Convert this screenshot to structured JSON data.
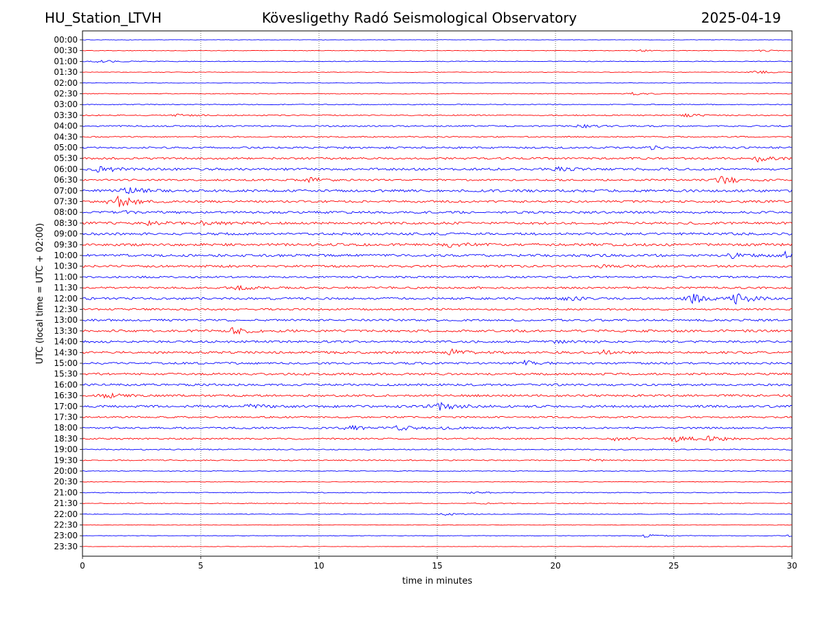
{
  "header": {
    "station": "HU_Station_LTVH",
    "title": "Kövesligethy Radó Seismological Observatory",
    "date": "2025-04-19"
  },
  "chart_data": {
    "type": "line",
    "title": "Kövesligethy Radó Seismological Observatory",
    "xlabel": "time in minutes",
    "ylabel": "UTC (local time = UTC + 02:00)",
    "xlim": [
      0,
      30
    ],
    "xticks": [
      0,
      5,
      10,
      15,
      20,
      25,
      30
    ],
    "grid": "vertical dotted lines at each x tick",
    "trace_colors": [
      "#0000ff",
      "#ff0000"
    ],
    "rows": [
      "00:00",
      "00:30",
      "01:00",
      "01:30",
      "02:00",
      "02:30",
      "03:00",
      "03:30",
      "04:00",
      "04:30",
      "05:00",
      "05:30",
      "06:00",
      "06:30",
      "07:00",
      "07:30",
      "08:00",
      "08:30",
      "09:00",
      "09:30",
      "10:00",
      "10:30",
      "11:00",
      "11:30",
      "12:00",
      "12:30",
      "13:00",
      "13:30",
      "14:00",
      "14:30",
      "15:00",
      "15:30",
      "16:00",
      "16:30",
      "17:00",
      "17:30",
      "18:00",
      "18:30",
      "19:00",
      "19:30",
      "20:00",
      "20:30",
      "21:00",
      "21:30",
      "22:00",
      "22:30",
      "23:00",
      "23:30"
    ],
    "noise_level": [
      0.3,
      0.4,
      0.5,
      0.4,
      0.3,
      0.5,
      0.6,
      0.8,
      1.0,
      0.9,
      1.3,
      1.4,
      1.6,
      1.2,
      1.7,
      1.5,
      1.6,
      1.7,
      1.7,
      1.8,
      1.8,
      1.6,
      1.3,
      1.4,
      1.6,
      1.3,
      1.4,
      1.6,
      1.5,
      1.6,
      1.4,
      1.5,
      1.5,
      1.5,
      1.7,
      1.2,
      1.3,
      1.1,
      0.8,
      0.8,
      0.5,
      0.4,
      0.6,
      0.5,
      0.5,
      0.4,
      0.4,
      0.3
    ],
    "events": [
      {
        "row": "00:30",
        "minute": 23.5,
        "amp": 1.5
      },
      {
        "row": "00:30",
        "minute": 28.7,
        "amp": 1.2
      },
      {
        "row": "01:00",
        "minute": 0.7,
        "amp": 1.8
      },
      {
        "row": "01:30",
        "minute": 28.5,
        "amp": 2.2
      },
      {
        "row": "02:30",
        "minute": 23.2,
        "amp": 1.8
      },
      {
        "row": "03:30",
        "minute": 4.0,
        "amp": 1.5
      },
      {
        "row": "03:30",
        "minute": 25.5,
        "amp": 2.0
      },
      {
        "row": "04:00",
        "minute": 21.0,
        "amp": 2.5
      },
      {
        "row": "05:00",
        "minute": 24.0,
        "amp": 2.0
      },
      {
        "row": "05:30",
        "minute": 28.5,
        "amp": 5.0
      },
      {
        "row": "06:00",
        "minute": 0.7,
        "amp": 5.0
      },
      {
        "row": "06:00",
        "minute": 20.0,
        "amp": 3.0
      },
      {
        "row": "06:30",
        "minute": 9.6,
        "amp": 3.0
      },
      {
        "row": "06:30",
        "minute": 27.0,
        "amp": 6.5
      },
      {
        "row": "07:00",
        "minute": 1.8,
        "amp": 5.0
      },
      {
        "row": "07:30",
        "minute": 1.5,
        "amp": 7.0
      },
      {
        "row": "07:30",
        "minute": 1.0,
        "amp": 3.0
      },
      {
        "row": "08:00",
        "minute": 1.6,
        "amp": 2.5
      },
      {
        "row": "08:30",
        "minute": 5.1,
        "amp": 3.5
      },
      {
        "row": "08:30",
        "minute": 2.8,
        "amp": 2.5
      },
      {
        "row": "09:30",
        "minute": 15.5,
        "amp": 2.5
      },
      {
        "row": "10:00",
        "minute": 27.5,
        "amp": 3.5
      },
      {
        "row": "10:00",
        "minute": 29.7,
        "amp": 4.0
      },
      {
        "row": "10:30",
        "minute": 22.0,
        "amp": 2.0
      },
      {
        "row": "11:30",
        "minute": 6.5,
        "amp": 2.5
      },
      {
        "row": "12:00",
        "minute": 25.8,
        "amp": 7.0
      },
      {
        "row": "12:00",
        "minute": 27.6,
        "amp": 7.0
      },
      {
        "row": "12:00",
        "minute": 20.5,
        "amp": 2.5
      },
      {
        "row": "13:30",
        "minute": 6.3,
        "amp": 4.5
      },
      {
        "row": "14:00",
        "minute": 20.0,
        "amp": 2.0
      },
      {
        "row": "14:30",
        "minute": 15.6,
        "amp": 4.0
      },
      {
        "row": "14:30",
        "minute": 22.0,
        "amp": 2.5
      },
      {
        "row": "15:00",
        "minute": 18.7,
        "amp": 3.0
      },
      {
        "row": "16:30",
        "minute": 1.0,
        "amp": 3.0
      },
      {
        "row": "17:00",
        "minute": 15.0,
        "amp": 6.5
      },
      {
        "row": "17:00",
        "minute": 7.0,
        "amp": 2.0
      },
      {
        "row": "18:00",
        "minute": 11.2,
        "amp": 4.0
      },
      {
        "row": "18:00",
        "minute": 13.3,
        "amp": 3.5
      },
      {
        "row": "18:00",
        "minute": 15.2,
        "amp": 2.0
      },
      {
        "row": "18:30",
        "minute": 25.0,
        "amp": 5.5
      },
      {
        "row": "18:30",
        "minute": 26.5,
        "amp": 4.0
      },
      {
        "row": "18:30",
        "minute": 22.5,
        "amp": 2.0
      },
      {
        "row": "19:30",
        "minute": 21.5,
        "amp": 1.5
      },
      {
        "row": "21:00",
        "minute": 16.5,
        "amp": 1.5
      },
      {
        "row": "21:30",
        "minute": 17.0,
        "amp": 1.2
      },
      {
        "row": "22:00",
        "minute": 15.3,
        "amp": 2.0
      },
      {
        "row": "23:00",
        "minute": 23.8,
        "amp": 2.5
      },
      {
        "row": "23:00",
        "minute": 29.8,
        "amp": 1.5
      }
    ]
  }
}
